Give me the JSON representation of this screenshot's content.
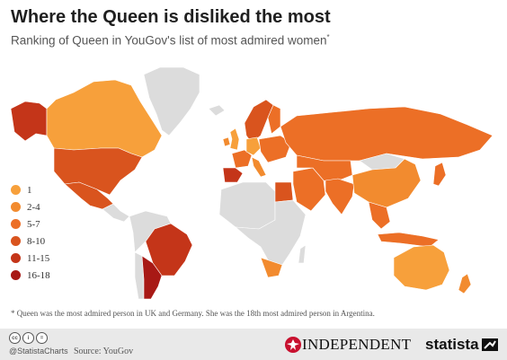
{
  "header": {
    "title": "Where the Queen is disliked the most",
    "subtitle": "Ranking of Queen in YouGov's list of most admired women",
    "subtitle_marker": "*"
  },
  "legend": {
    "items": [
      {
        "label": "1",
        "color": "#f7a03b"
      },
      {
        "label": "2-4",
        "color": "#f28b2f"
      },
      {
        "label": "5-7",
        "color": "#ec6f26"
      },
      {
        "label": "8-10",
        "color": "#d9541e"
      },
      {
        "label": "11-15",
        "color": "#c43519"
      },
      {
        "label": "16-18",
        "color": "#a81915"
      }
    ]
  },
  "map": {
    "no_data_color": "#dcdcdc",
    "regions": [
      {
        "name": "greenland",
        "bin": null
      },
      {
        "name": "alaska",
        "bin": 4
      },
      {
        "name": "canada",
        "bin": 0
      },
      {
        "name": "usa",
        "bin": 3
      },
      {
        "name": "mexico",
        "bin": 3
      },
      {
        "name": "central-america",
        "bin": null
      },
      {
        "name": "south-america-north",
        "bin": null
      },
      {
        "name": "brazil",
        "bin": 4
      },
      {
        "name": "argentina",
        "bin": 5
      },
      {
        "name": "chile",
        "bin": null
      },
      {
        "name": "uk",
        "bin": 0
      },
      {
        "name": "ireland",
        "bin": 1
      },
      {
        "name": "iceland",
        "bin": null
      },
      {
        "name": "scandinavia",
        "bin": 3
      },
      {
        "name": "finland",
        "bin": 2
      },
      {
        "name": "germany",
        "bin": 0
      },
      {
        "name": "france",
        "bin": 2
      },
      {
        "name": "spain",
        "bin": 4
      },
      {
        "name": "italy",
        "bin": 1
      },
      {
        "name": "eastern-europe",
        "bin": 2
      },
      {
        "name": "russia",
        "bin": 2
      },
      {
        "name": "north-africa",
        "bin": null
      },
      {
        "name": "egypt",
        "bin": 3
      },
      {
        "name": "middle-east",
        "bin": 2
      },
      {
        "name": "central-africa",
        "bin": null
      },
      {
        "name": "south-africa",
        "bin": 1
      },
      {
        "name": "madagascar",
        "bin": null
      },
      {
        "name": "central-asia",
        "bin": 2
      },
      {
        "name": "india",
        "bin": 2
      },
      {
        "name": "china",
        "bin": 1
      },
      {
        "name": "mongolia",
        "bin": null
      },
      {
        "name": "southeast-asia",
        "bin": 2
      },
      {
        "name": "indonesia",
        "bin": 2
      },
      {
        "name": "japan",
        "bin": 2
      },
      {
        "name": "australia",
        "bin": 0
      },
      {
        "name": "new-zealand",
        "bin": 1
      }
    ]
  },
  "footnote": "* Queen was the most admired person in UK and Germany. She was the 18th most admired person in Argentina.",
  "footer": {
    "handle": "@StatistaCharts",
    "source": "Source: YouGov",
    "independent_logo": "INDEPENDENT",
    "statista_logo": "statista"
  }
}
